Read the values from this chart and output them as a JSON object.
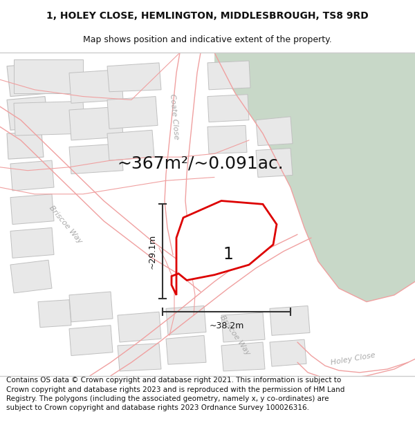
{
  "title_line1": "1, HOLEY CLOSE, HEMLINGTON, MIDDLESBROUGH, TS8 9RD",
  "title_line2": "Map shows position and indicative extent of the property.",
  "area_text": "~367m²/~0.091ac.",
  "label_1": "1",
  "dim_width": "~38.2m",
  "dim_height": "~29.1m",
  "footer_text": "Contains OS data © Crown copyright and database right 2021. This information is subject to Crown copyright and database rights 2023 and is reproduced with the permission of HM Land Registry. The polygons (including the associated geometry, namely x, y co-ordinates) are subject to Crown copyright and database rights 2023 Ordnance Survey 100026316.",
  "bg_color": "#ffffff",
  "green_area_color": "#c8d8c8",
  "building_fill": "#e8e8e8",
  "building_edge": "#c0c0c0",
  "road_outline_color": "#f0a0a0",
  "property_edge_color": "#dd0000",
  "property_fill": "#ffffff",
  "dim_line_color": "#333333",
  "text_color": "#111111",
  "street_label_color": "#aaaaaa",
  "title_fontsize": 10,
  "subtitle_fontsize": 9,
  "footer_fontsize": 7.5,
  "area_fontsize": 18,
  "label_fontsize": 17,
  "dim_fontsize": 9
}
